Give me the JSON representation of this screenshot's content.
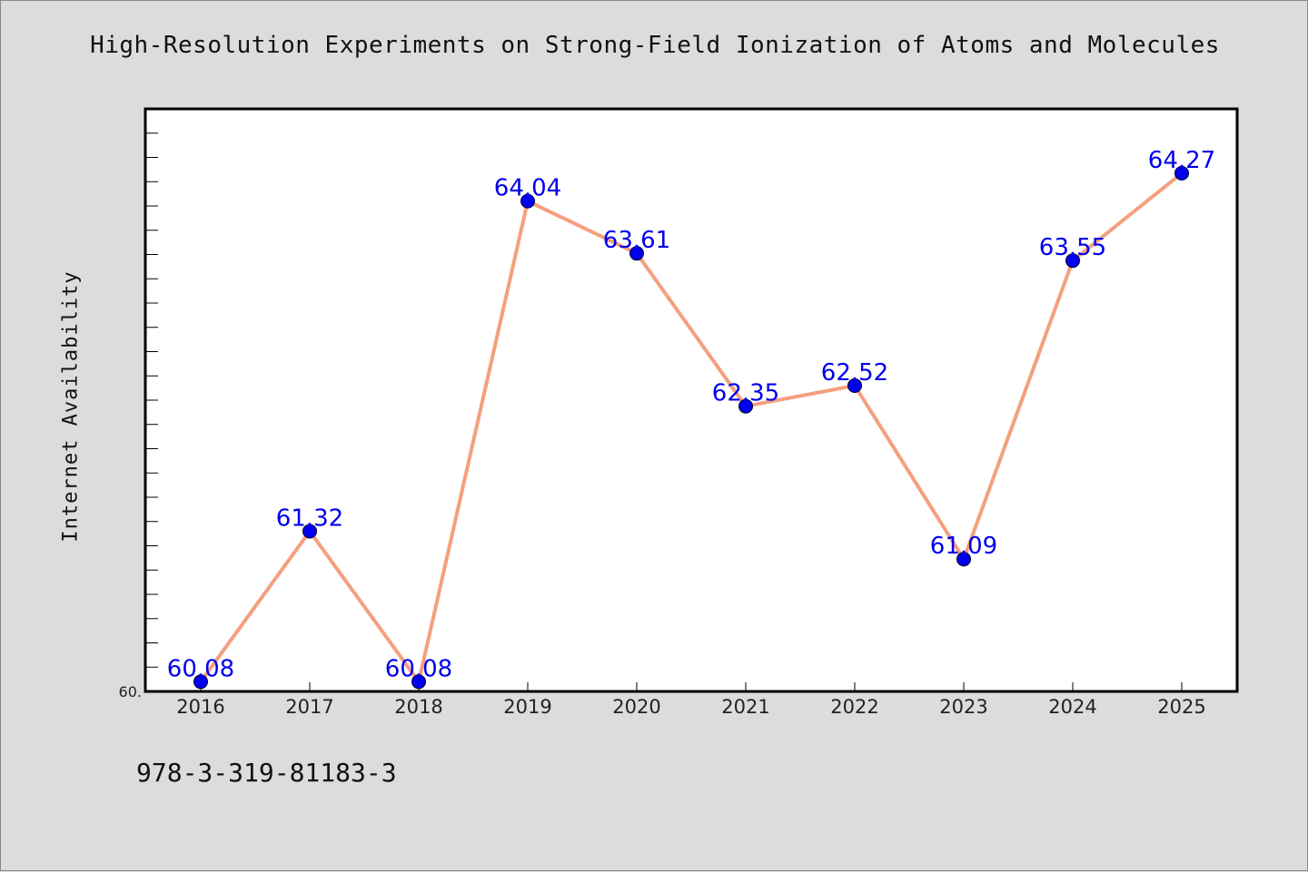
{
  "title": "High-Resolution Experiments on Strong-Field Ionization of Atoms and Molecules",
  "footer_text": "978-3-319-81183-3",
  "chart_data": {
    "type": "line",
    "title": "High-Resolution Experiments on Strong-Field Ionization of Atoms and Molecules",
    "xlabel": "",
    "ylabel": "Internet Availability",
    "categories": [
      "2016",
      "2017",
      "2018",
      "2019",
      "2020",
      "2021",
      "2022",
      "2023",
      "2024",
      "2025"
    ],
    "series": [
      {
        "values": [
          60.08,
          61.32,
          60.08,
          64.04,
          63.61,
          62.35,
          62.52,
          61.09,
          63.55,
          64.27
        ],
        "labels": [
          "60.08",
          "61.32",
          "60.08",
          "64.04",
          "63.61",
          "62.35",
          "62.52",
          "61.09",
          "63.55",
          "64.27"
        ]
      }
    ],
    "ylim": [
      60.0,
      64.8
    ],
    "y_tick_labels": [
      "60."
    ],
    "grid": false,
    "colors": {
      "line": "#f4a07e",
      "marker": "#0000ee",
      "label": "#0000ee",
      "plot_bg": "#ffffff"
    }
  }
}
